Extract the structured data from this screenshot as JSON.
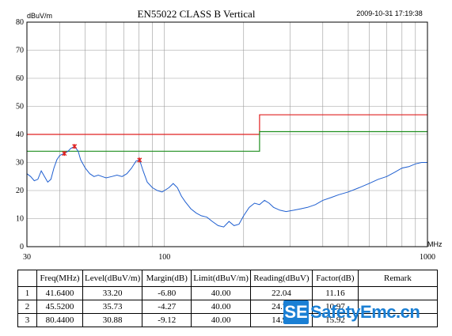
{
  "chart_data": {
    "type": "line",
    "title": "EN55022 CLASS B  Vertical",
    "timestamp": "2009-10-31 17:19:38",
    "ylabel": "dBuV/m",
    "xlabel": "MHz",
    "xscale": "log",
    "xlim": [
      30,
      1000
    ],
    "ylim": [
      0,
      80
    ],
    "yticks": [
      0,
      10,
      20,
      30,
      40,
      50,
      60,
      70,
      80
    ],
    "ytick_labels": [
      "0",
      "10",
      "20",
      "30",
      "40",
      "50",
      "60",
      "70",
      "80"
    ],
    "xtick_labels": [
      {
        "value": 30,
        "label": "30"
      },
      {
        "value": 100,
        "label": "100"
      },
      {
        "value": 1000,
        "label": "1000"
      }
    ],
    "grid": true,
    "series": [
      {
        "color": "#e02020",
        "points": [
          [
            30,
            40
          ],
          [
            230,
            40
          ],
          [
            230,
            47
          ],
          [
            1000,
            47
          ]
        ]
      },
      {
        "color": "#1f8f1f",
        "points": [
          [
            30,
            34
          ],
          [
            230,
            34
          ],
          [
            230,
            41
          ],
          [
            1000,
            41
          ]
        ]
      },
      {
        "color": "#1f5fd0",
        "points": [
          [
            30,
            26
          ],
          [
            31,
            25
          ],
          [
            32,
            23.5
          ],
          [
            33,
            24
          ],
          [
            34,
            27
          ],
          [
            35,
            25
          ],
          [
            36,
            23
          ],
          [
            37,
            24
          ],
          [
            38,
            28
          ],
          [
            39,
            31
          ],
          [
            40,
            32.5
          ],
          [
            41,
            33
          ],
          [
            41.64,
            33.2
          ],
          [
            43,
            34
          ],
          [
            44,
            35
          ],
          [
            45.52,
            35.73
          ],
          [
            47,
            34
          ],
          [
            48,
            31
          ],
          [
            50,
            28
          ],
          [
            52,
            26
          ],
          [
            54,
            25
          ],
          [
            56,
            25.5
          ],
          [
            58,
            25
          ],
          [
            60,
            24.5
          ],
          [
            63,
            25
          ],
          [
            66,
            25.5
          ],
          [
            69,
            25
          ],
          [
            72,
            26
          ],
          [
            75,
            28
          ],
          [
            78,
            30.5
          ],
          [
            80.44,
            30.88
          ],
          [
            83,
            27
          ],
          [
            86,
            23
          ],
          [
            90,
            21
          ],
          [
            94,
            20
          ],
          [
            98,
            19.5
          ],
          [
            100,
            20
          ],
          [
            104,
            21
          ],
          [
            108,
            22.5
          ],
          [
            112,
            21
          ],
          [
            116,
            18
          ],
          [
            120,
            16
          ],
          [
            126,
            13.5
          ],
          [
            132,
            12
          ],
          [
            138,
            11
          ],
          [
            145,
            10.5
          ],
          [
            152,
            9
          ],
          [
            160,
            7.5
          ],
          [
            168,
            7
          ],
          [
            176,
            9
          ],
          [
            184,
            7.5
          ],
          [
            192,
            8
          ],
          [
            200,
            11
          ],
          [
            210,
            14
          ],
          [
            220,
            15.5
          ],
          [
            230,
            15
          ],
          [
            240,
            16.5
          ],
          [
            250,
            15.5
          ],
          [
            260,
            14
          ],
          [
            275,
            13
          ],
          [
            290,
            12.5
          ],
          [
            310,
            13
          ],
          [
            330,
            13.5
          ],
          [
            350,
            14
          ],
          [
            375,
            15
          ],
          [
            400,
            16.5
          ],
          [
            430,
            17.5
          ],
          [
            460,
            18.5
          ],
          [
            500,
            19.5
          ],
          [
            550,
            21
          ],
          [
            600,
            22.5
          ],
          [
            650,
            24
          ],
          [
            700,
            25
          ],
          [
            750,
            26.5
          ],
          [
            800,
            28
          ],
          [
            850,
            28.5
          ],
          [
            900,
            29.5
          ],
          [
            950,
            30
          ],
          [
            1000,
            30
          ]
        ]
      }
    ],
    "markers": [
      {
        "x": 41.64,
        "y": 33.2,
        "color": "#e02020"
      },
      {
        "x": 45.52,
        "y": 35.73,
        "color": "#e02020"
      },
      {
        "x": 80.44,
        "y": 30.88,
        "color": "#e02020"
      }
    ]
  },
  "table": {
    "headers": [
      "",
      "Freq(MHz)",
      "Level(dBuV/m)",
      "Margin(dB)",
      "Limit(dBuV/m)",
      "Reading(dBuV)",
      "Factor(dB)",
      "Remark"
    ],
    "rows": [
      [
        "1",
        "41.6400",
        "33.20",
        "-6.80",
        "40.00",
        "22.04",
        "11.16",
        ""
      ],
      [
        "2",
        "45.5200",
        "35.73",
        "-4.27",
        "40.00",
        "24.76",
        "10.97",
        ""
      ],
      [
        "3",
        "80.4400",
        "30.88",
        "-9.12",
        "40.00",
        "14.96",
        "15.92",
        ""
      ]
    ]
  },
  "watermark": {
    "badge": "SE",
    "text": "SafetyEmc.cn",
    "color": "#1a7fd4"
  }
}
